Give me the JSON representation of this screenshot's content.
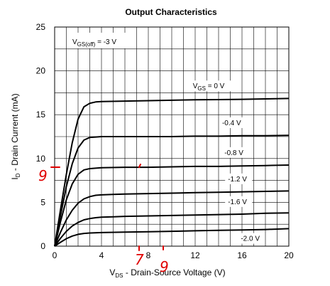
{
  "chart_data": {
    "type": "line",
    "title": "Output Characteristics",
    "xlabel": {
      "prefix": "V",
      "sub": "DS",
      "suffix": " - Drain-Source Voltage (V)"
    },
    "ylabel": {
      "prefix": "I",
      "sub": "D",
      "suffix": " - Drain Current (mA)"
    },
    "xlim": [
      0,
      20
    ],
    "ylim": [
      0,
      25
    ],
    "x_ticks": [
      0,
      4,
      8,
      12,
      16,
      20
    ],
    "y_ticks": [
      0,
      5,
      10,
      15,
      20,
      25
    ],
    "grid": true,
    "annotation": {
      "prefix": "V",
      "sub": "GS(off)",
      "suffix": " = -3 V"
    },
    "series": [
      {
        "name": {
          "prefix": "V",
          "sub": "GS",
          "suffix": " = 0 V"
        },
        "x": [
          0,
          0.5,
          1,
          1.5,
          2,
          2.5,
          3,
          3.5,
          4,
          6,
          8,
          10,
          12,
          14,
          16,
          18,
          20
        ],
        "y": [
          0,
          4.2,
          8.2,
          11.8,
          14.5,
          15.9,
          16.3,
          16.45,
          16.5,
          16.55,
          16.6,
          16.65,
          16.7,
          16.72,
          16.75,
          16.8,
          16.85
        ]
      },
      {
        "name": "-0.4 V",
        "x": [
          0,
          0.5,
          1,
          1.5,
          2,
          2.5,
          3,
          3.5,
          4,
          6,
          8,
          10,
          12,
          14,
          16,
          18,
          20
        ],
        "y": [
          0,
          3.5,
          6.8,
          9.4,
          11.2,
          12.1,
          12.4,
          12.45,
          12.5,
          12.5,
          12.5,
          12.5,
          12.55,
          12.55,
          12.6,
          12.6,
          12.65
        ]
      },
      {
        "name": "-0.8 V",
        "x": [
          0,
          0.5,
          1,
          1.5,
          2,
          2.5,
          3,
          3.5,
          4,
          6,
          8,
          10,
          12,
          14,
          16,
          18,
          20
        ],
        "y": [
          0,
          2.8,
          5.3,
          7.1,
          8.2,
          8.7,
          8.85,
          8.9,
          8.95,
          9.0,
          9.0,
          9.05,
          9.1,
          9.1,
          9.15,
          9.2,
          9.25
        ]
      },
      {
        "name": "-1.2 V",
        "x": [
          0,
          0.5,
          1,
          1.5,
          2,
          2.5,
          3,
          3.5,
          4,
          5,
          6,
          8,
          10,
          12,
          14,
          16,
          18,
          20
        ],
        "y": [
          0,
          1.6,
          3.0,
          4.1,
          4.9,
          5.4,
          5.65,
          5.8,
          5.85,
          5.9,
          5.95,
          6.0,
          6.05,
          6.1,
          6.15,
          6.2,
          6.25,
          6.3
        ]
      },
      {
        "name": "-1.6 V",
        "x": [
          0,
          0.5,
          1,
          1.5,
          2,
          2.5,
          3,
          3.5,
          4,
          5,
          6,
          8,
          10,
          12,
          14,
          16,
          18,
          20
        ],
        "y": [
          0,
          0.9,
          1.7,
          2.3,
          2.7,
          3.0,
          3.15,
          3.25,
          3.3,
          3.35,
          3.4,
          3.45,
          3.5,
          3.55,
          3.6,
          3.65,
          3.75,
          3.8
        ]
      },
      {
        "name": "-2.0 V",
        "x": [
          0,
          0.5,
          1,
          1.5,
          2,
          2.5,
          3,
          4,
          6,
          8,
          10,
          12,
          14,
          16,
          18,
          20
        ],
        "y": [
          0,
          0.45,
          0.85,
          1.15,
          1.35,
          1.45,
          1.5,
          1.55,
          1.6,
          1.65,
          1.7,
          1.75,
          1.8,
          1.85,
          1.9,
          2.0
        ]
      }
    ],
    "handwritten_marks": [
      "9",
      "7",
      "9"
    ]
  }
}
